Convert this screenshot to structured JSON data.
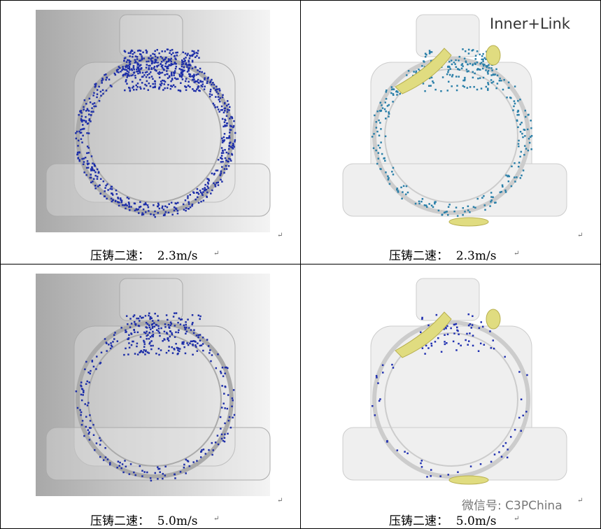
{
  "table": {
    "rows": [
      [
        {
          "caption": "压铸二速：  2.3m/s"
        },
        {
          "caption": "压铸二速：  2.3m/s"
        }
      ],
      [
        {
          "caption": "压铸二速：  5.0m/s"
        },
        {
          "caption": "压铸二速：  5.0m/s"
        }
      ]
    ]
  },
  "watermark": "Inner+Link",
  "wechat": "微信号: C3PChina",
  "paragraph_mark": "↵"
}
